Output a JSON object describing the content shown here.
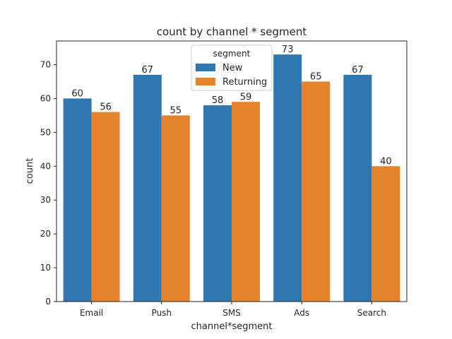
{
  "chart_data": {
    "type": "bar",
    "title": "count by channel * segment",
    "xlabel": "channel*segment",
    "ylabel": "count",
    "categories": [
      "Email",
      "Push",
      "SMS",
      "Ads",
      "Search"
    ],
    "series": [
      {
        "name": "New",
        "color": "#2f77b1",
        "values": [
          60,
          67,
          58,
          73,
          67
        ]
      },
      {
        "name": "Returning",
        "color": "#e6822c",
        "values": [
          56,
          55,
          59,
          65,
          40
        ]
      }
    ],
    "ylim": [
      0,
      77
    ],
    "yticks": [
      0,
      10,
      20,
      30,
      40,
      50,
      60,
      70
    ],
    "grid": false,
    "legend": {
      "title": "segment",
      "placement": "top-center"
    }
  }
}
